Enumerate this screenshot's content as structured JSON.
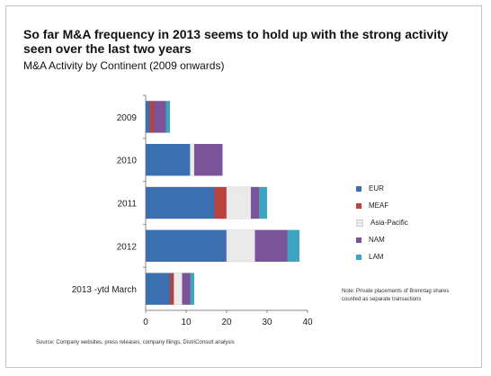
{
  "title": "So far M&A frequency in 2013 seems to hold up with the strong activity seen over the last two years",
  "subtitle": "M&A Activity by Continent (2009 onwards)",
  "note": "Note: Private placements of Brenntag shares counted as separate transactions",
  "source": "Source: Company websites, press releases, company filings, DistriConsult analysis",
  "colors": {
    "EUR": "#3b6fb0",
    "MEAF": "#b8423c",
    "Asia-Pacific": "#eaeaea",
    "NAM": "#7b5399",
    "LAM": "#3ea5c1"
  },
  "chart_data": {
    "type": "bar",
    "orientation": "horizontal",
    "stacked": true,
    "categories": [
      "2009",
      "2010",
      "2011",
      "2012",
      "2013 -ytd March"
    ],
    "series": [
      {
        "name": "EUR",
        "values": [
          1,
          11,
          17,
          20,
          6
        ]
      },
      {
        "name": "MEAF",
        "values": [
          1,
          0,
          3,
          0,
          1
        ]
      },
      {
        "name": "Asia-Pacific",
        "values": [
          0,
          1,
          6,
          7,
          2
        ]
      },
      {
        "name": "NAM",
        "values": [
          3,
          7,
          2,
          8,
          2
        ]
      },
      {
        "name": "LAM",
        "values": [
          1,
          0,
          2,
          3,
          1
        ]
      }
    ],
    "xlim": [
      0,
      40
    ],
    "xticks": [
      0,
      10,
      20,
      30,
      40
    ],
    "grid": false,
    "legend_position": "right"
  }
}
